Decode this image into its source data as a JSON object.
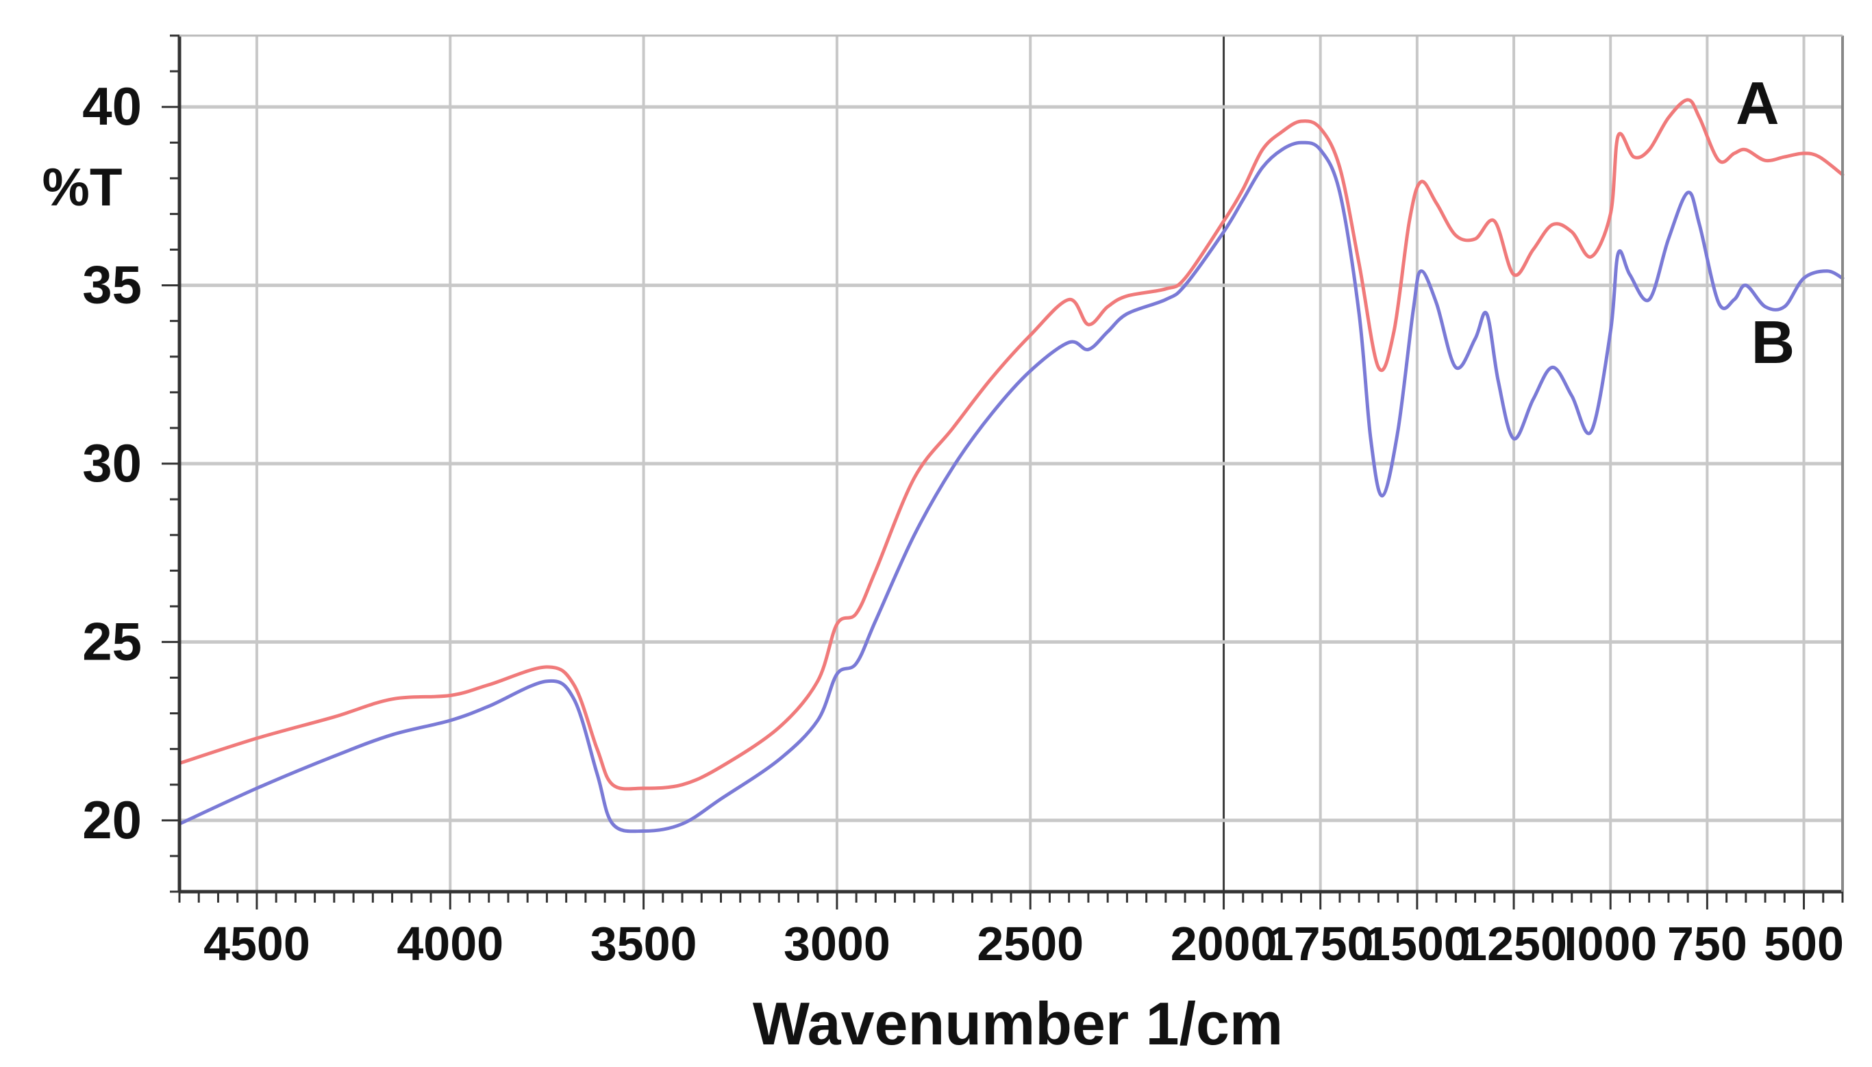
{
  "chart_data": {
    "type": "line",
    "title": "",
    "xlabel": "Wavenumber 1/cm",
    "ylabel": "%T",
    "x_reversed": true,
    "xlim": [
      4700,
      400
    ],
    "ylim": [
      18,
      42
    ],
    "x_major_ticks": [
      4500,
      4000,
      3500,
      3000,
      2500,
      2000,
      1750,
      1500,
      1250,
      1000,
      750,
      500
    ],
    "x_tick_labels": [
      "4500",
      "4000",
      "3500",
      "3000",
      "2500",
      "2000",
      "1750",
      "1500",
      "1250",
      "I000",
      "750",
      "500"
    ],
    "y_major_ticks": [
      20,
      25,
      30,
      35,
      40
    ],
    "y_tick_labels": [
      "20",
      "25",
      "30",
      "35",
      "40"
    ],
    "grid": true,
    "colors": {
      "A": "#f07a7a",
      "B": "#7a7ad6",
      "grid": "#c8c8c8",
      "axis": "#333333",
      "divider": "#3a3a3a"
    },
    "series": [
      {
        "name": "A",
        "points": [
          [
            4700,
            21.6
          ],
          [
            4500,
            22.3
          ],
          [
            4300,
            22.9
          ],
          [
            4150,
            23.4
          ],
          [
            4000,
            23.5
          ],
          [
            3900,
            23.8
          ],
          [
            3750,
            24.3
          ],
          [
            3680,
            23.8
          ],
          [
            3620,
            22.0
          ],
          [
            3580,
            21.0
          ],
          [
            3500,
            20.9
          ],
          [
            3400,
            21.0
          ],
          [
            3300,
            21.5
          ],
          [
            3150,
            22.6
          ],
          [
            3050,
            23.9
          ],
          [
            3000,
            25.5
          ],
          [
            2950,
            25.8
          ],
          [
            2900,
            27.0
          ],
          [
            2800,
            29.6
          ],
          [
            2700,
            31.0
          ],
          [
            2600,
            32.4
          ],
          [
            2500,
            33.6
          ],
          [
            2400,
            34.6
          ],
          [
            2350,
            33.9
          ],
          [
            2300,
            34.4
          ],
          [
            2250,
            34.7
          ],
          [
            2150,
            34.9
          ],
          [
            2100,
            35.2
          ],
          [
            2000,
            36.8
          ],
          [
            1950,
            37.7
          ],
          [
            1900,
            38.8
          ],
          [
            1850,
            39.3
          ],
          [
            1800,
            39.6
          ],
          [
            1750,
            39.4
          ],
          [
            1700,
            38.3
          ],
          [
            1650,
            35.6
          ],
          [
            1600,
            32.7
          ],
          [
            1560,
            33.7
          ],
          [
            1520,
            36.8
          ],
          [
            1490,
            37.9
          ],
          [
            1450,
            37.3
          ],
          [
            1400,
            36.4
          ],
          [
            1350,
            36.3
          ],
          [
            1300,
            36.8
          ],
          [
            1250,
            35.3
          ],
          [
            1200,
            36.0
          ],
          [
            1150,
            36.7
          ],
          [
            1100,
            36.5
          ],
          [
            1050,
            35.8
          ],
          [
            1000,
            37.0
          ],
          [
            980,
            39.2
          ],
          [
            940,
            38.6
          ],
          [
            900,
            38.8
          ],
          [
            850,
            39.7
          ],
          [
            800,
            40.2
          ],
          [
            770,
            39.7
          ],
          [
            720,
            38.5
          ],
          [
            680,
            38.7
          ],
          [
            650,
            38.8
          ],
          [
            600,
            38.5
          ],
          [
            550,
            38.6
          ],
          [
            500,
            38.7
          ],
          [
            460,
            38.6
          ],
          [
            400,
            38.1
          ]
        ]
      },
      {
        "name": "B",
        "points": [
          [
            4700,
            19.9
          ],
          [
            4500,
            20.9
          ],
          [
            4300,
            21.8
          ],
          [
            4150,
            22.4
          ],
          [
            4000,
            22.8
          ],
          [
            3900,
            23.2
          ],
          [
            3750,
            23.9
          ],
          [
            3680,
            23.4
          ],
          [
            3620,
            21.3
          ],
          [
            3580,
            19.9
          ],
          [
            3500,
            19.7
          ],
          [
            3400,
            19.9
          ],
          [
            3300,
            20.6
          ],
          [
            3150,
            21.7
          ],
          [
            3050,
            22.8
          ],
          [
            3000,
            24.1
          ],
          [
            2950,
            24.4
          ],
          [
            2900,
            25.6
          ],
          [
            2800,
            28.0
          ],
          [
            2700,
            29.9
          ],
          [
            2600,
            31.4
          ],
          [
            2500,
            32.6
          ],
          [
            2400,
            33.4
          ],
          [
            2350,
            33.2
          ],
          [
            2300,
            33.7
          ],
          [
            2250,
            34.2
          ],
          [
            2150,
            34.6
          ],
          [
            2100,
            35.0
          ],
          [
            2000,
            36.5
          ],
          [
            1950,
            37.4
          ],
          [
            1900,
            38.3
          ],
          [
            1850,
            38.8
          ],
          [
            1800,
            39.0
          ],
          [
            1750,
            38.8
          ],
          [
            1700,
            37.6
          ],
          [
            1650,
            34.2
          ],
          [
            1620,
            30.7
          ],
          [
            1590,
            29.1
          ],
          [
            1550,
            30.9
          ],
          [
            1510,
            34.3
          ],
          [
            1490,
            35.4
          ],
          [
            1450,
            34.5
          ],
          [
            1400,
            32.7
          ],
          [
            1350,
            33.5
          ],
          [
            1320,
            34.2
          ],
          [
            1290,
            32.3
          ],
          [
            1250,
            30.7
          ],
          [
            1200,
            31.8
          ],
          [
            1150,
            32.7
          ],
          [
            1100,
            31.9
          ],
          [
            1050,
            30.9
          ],
          [
            1000,
            33.7
          ],
          [
            980,
            35.9
          ],
          [
            950,
            35.3
          ],
          [
            900,
            34.6
          ],
          [
            850,
            36.3
          ],
          [
            800,
            37.6
          ],
          [
            770,
            36.7
          ],
          [
            720,
            34.5
          ],
          [
            680,
            34.6
          ],
          [
            650,
            35.0
          ],
          [
            600,
            34.4
          ],
          [
            550,
            34.4
          ],
          [
            500,
            35.2
          ],
          [
            440,
            35.4
          ],
          [
            400,
            35.2
          ]
        ]
      }
    ]
  }
}
